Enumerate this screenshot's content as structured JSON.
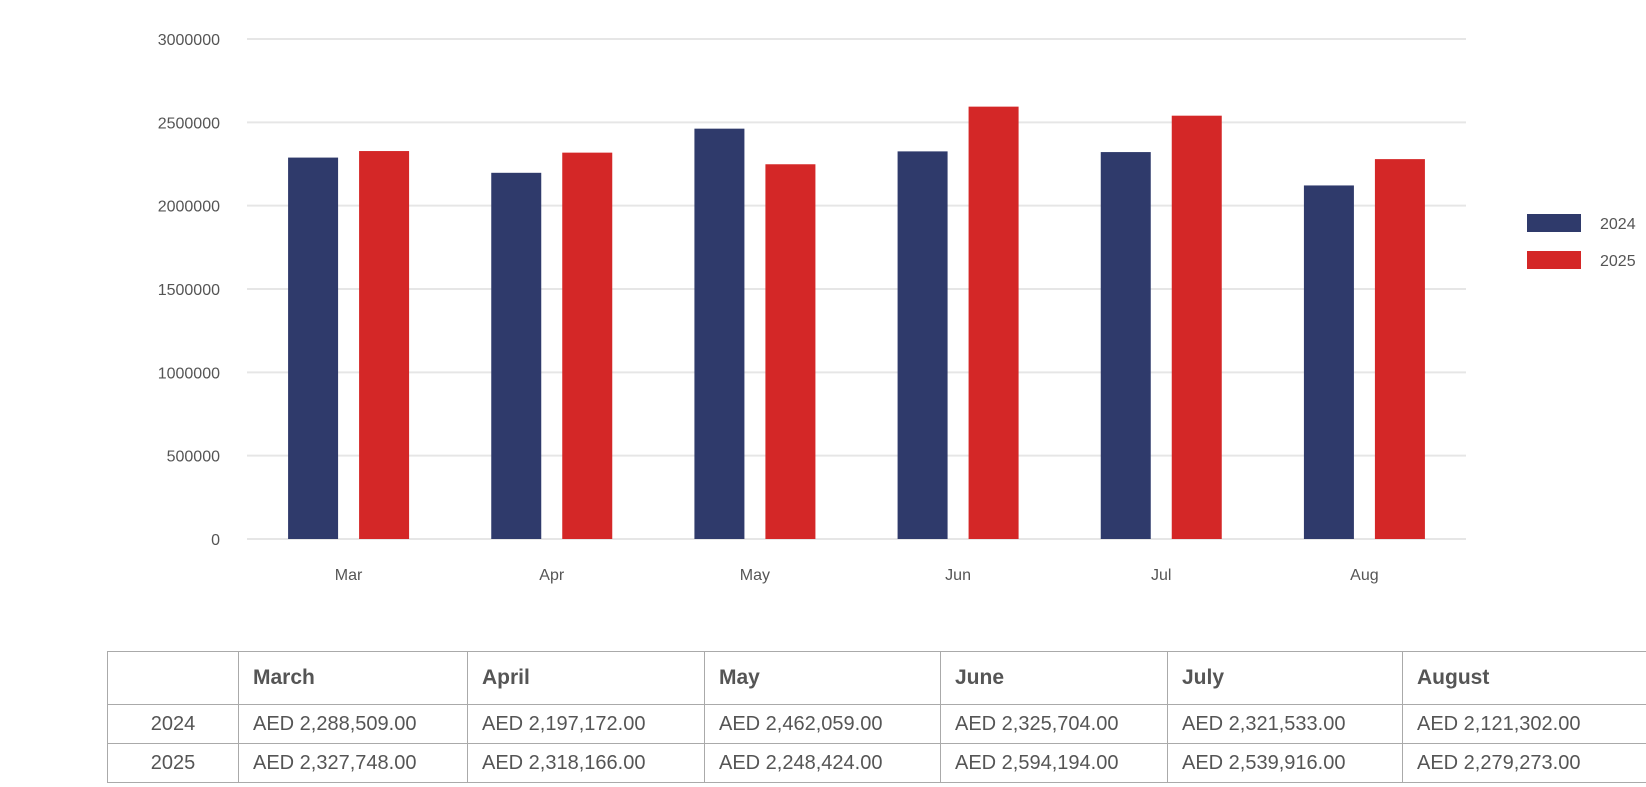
{
  "chart_data": {
    "type": "bar",
    "categories": [
      "Mar",
      "Apr",
      "May",
      "Jun",
      "Jul",
      "Aug"
    ],
    "series": [
      {
        "name": "2024",
        "color": "#2f3a6b",
        "values": [
          2288509,
          2197172,
          2462059,
          2325704,
          2321533,
          2121302
        ]
      },
      {
        "name": "2025",
        "color": "#d42727",
        "values": [
          2327748,
          2318166,
          2248424,
          2594194,
          2539916,
          2279273
        ]
      }
    ],
    "ylim": [
      0,
      3000000
    ],
    "yticks": [
      "0",
      "500000",
      "1000000",
      "1500000",
      "2000000",
      "2500000",
      "3000000"
    ],
    "title": "",
    "xlabel": "",
    "ylabel": "",
    "grid": true,
    "legend_position": "right"
  },
  "table": {
    "corner": "",
    "headers": [
      "March",
      "April",
      "May",
      "June",
      "July",
      "August"
    ],
    "rows": [
      {
        "label": "2024",
        "cells": [
          "AED 2,288,509.00",
          "AED 2,197,172.00",
          "AED 2,462,059.00",
          "AED 2,325,704.00",
          "AED 2,321,533.00",
          "AED 2,121,302.00"
        ]
      },
      {
        "label": "2025",
        "cells": [
          "AED 2,327,748.00",
          "AED 2,318,166.00",
          "AED 2,248,424.00",
          "AED 2,594,194.00",
          "AED 2,539,916.00",
          "AED 2,279,273.00"
        ]
      }
    ]
  }
}
